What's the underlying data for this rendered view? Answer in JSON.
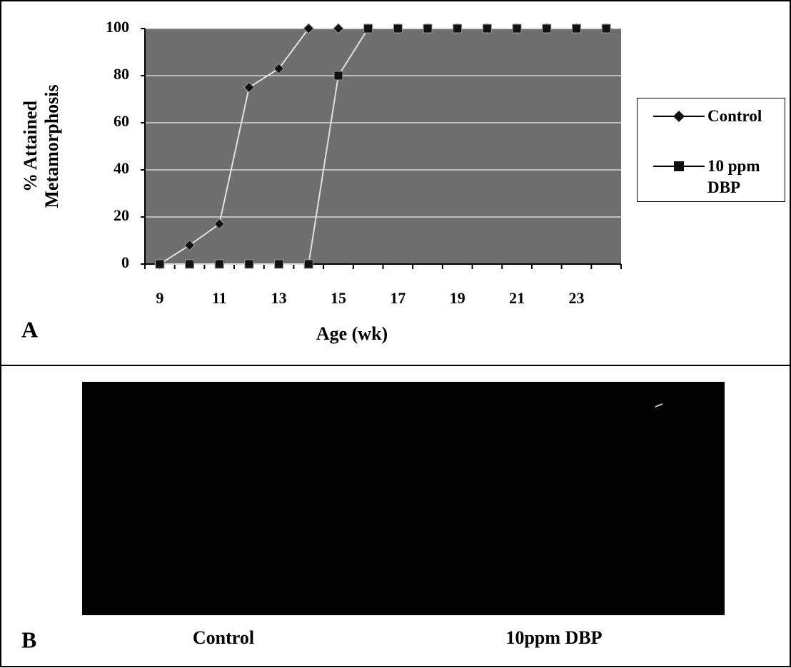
{
  "chart_data": {
    "type": "line",
    "y_label": "% Attained Metamorphosis",
    "x_label": "Age (wk)",
    "categories": [
      "9",
      null,
      "11",
      null,
      "13",
      null,
      "15",
      null,
      "17",
      null,
      "19",
      null,
      "21",
      null,
      "23",
      null
    ],
    "series": [
      {
        "name": "Control",
        "color": "#111111",
        "marker": "diamond",
        "values": [
          0,
          8,
          17,
          75,
          83,
          100,
          100,
          100,
          100,
          100,
          100,
          100,
          100,
          100,
          100,
          100
        ]
      },
      {
        "name": "10 ppm DBP",
        "color": "#111111",
        "marker": "square",
        "values": [
          0,
          0,
          0,
          0,
          0,
          0,
          80,
          100,
          100,
          100,
          100,
          100,
          100,
          100,
          100,
          100
        ]
      }
    ],
    "ylim": [
      0,
      100
    ],
    "yticks": [
      0,
      20,
      40,
      60,
      80,
      100
    ],
    "grid": true,
    "legend": "right"
  },
  "panel_a": {
    "label": "A"
  },
  "panel_b": {
    "label": "B",
    "captions": [
      "Control",
      "10ppm DBP"
    ]
  }
}
